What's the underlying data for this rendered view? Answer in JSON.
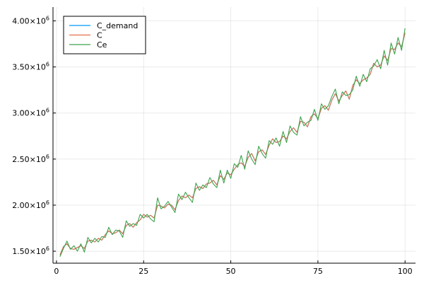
{
  "chart_data": {
    "type": "line",
    "title": "",
    "xlabel": "",
    "ylabel": "",
    "xlim": [
      -1,
      103
    ],
    "ylim": [
      1370000,
      4150000
    ],
    "grid": true,
    "legend_position": "top-left",
    "x_ticks": [
      0,
      25,
      50,
      75,
      100
    ],
    "x_tick_labels": [
      "0",
      "25",
      "50",
      "75",
      "100"
    ],
    "y_ticks": [
      1500000,
      2000000,
      2500000,
      3000000,
      3500000,
      4000000
    ],
    "y_tick_labels": [
      {
        "mantissa": "1.50×10",
        "exponent": "6"
      },
      {
        "mantissa": "2.00×10",
        "exponent": "6"
      },
      {
        "mantissa": "2.50×10",
        "exponent": "6"
      },
      {
        "mantissa": "3.00×10",
        "exponent": "6"
      },
      {
        "mantissa": "3.50×10",
        "exponent": "6"
      },
      {
        "mantissa": "4.00×10",
        "exponent": "6"
      }
    ],
    "x": [
      1,
      2,
      3,
      4,
      5,
      6,
      7,
      8,
      9,
      10,
      11,
      12,
      13,
      14,
      15,
      16,
      17,
      18,
      19,
      20,
      21,
      22,
      23,
      24,
      25,
      26,
      27,
      28,
      29,
      30,
      31,
      32,
      33,
      34,
      35,
      36,
      37,
      38,
      39,
      40,
      41,
      42,
      43,
      44,
      45,
      46,
      47,
      48,
      49,
      50,
      51,
      52,
      53,
      54,
      55,
      56,
      57,
      58,
      59,
      60,
      61,
      62,
      63,
      64,
      65,
      66,
      67,
      68,
      69,
      70,
      71,
      72,
      73,
      74,
      75,
      76,
      77,
      78,
      79,
      80,
      81,
      82,
      83,
      84,
      85,
      86,
      87,
      88,
      89,
      90,
      91,
      92,
      93,
      94,
      95,
      96,
      97,
      98,
      99,
      100
    ],
    "series": [
      {
        "name": "C_demand",
        "color": "#009AFA",
        "values": [
          1460000,
          1550000,
          1580000,
          1530000,
          1520000,
          1540000,
          1560000,
          1530000,
          1610000,
          1620000,
          1600000,
          1640000,
          1620000,
          1680000,
          1720000,
          1690000,
          1700000,
          1730000,
          1690000,
          1780000,
          1800000,
          1760000,
          1810000,
          1840000,
          1900000,
          1870000,
          1890000,
          1860000,
          2000000,
          1990000,
          1970000,
          2010000,
          2000000,
          1950000,
          2050000,
          2100000,
          2080000,
          2110000,
          2080000,
          2180000,
          2200000,
          2180000,
          2230000,
          2240000,
          2270000,
          2220000,
          2320000,
          2280000,
          2350000,
          2330000,
          2390000,
          2440000,
          2460000,
          2420000,
          2520000,
          2560000,
          2480000,
          2580000,
          2600000,
          2550000,
          2650000,
          2720000,
          2680000,
          2690000,
          2750000,
          2720000,
          2800000,
          2840000,
          2790000,
          2910000,
          2900000,
          2850000,
          2960000,
          2990000,
          2940000,
          3050000,
          3080000,
          3030000,
          3140000,
          3210000,
          3130000,
          3190000,
          3240000,
          3150000,
          3300000,
          3360000,
          3320000,
          3360000,
          3380000,
          3420000,
          3540000,
          3500000,
          3520000,
          3620000,
          3570000,
          3700000,
          3690000,
          3760000,
          3720000,
          3870000
        ]
      },
      {
        "name": "C",
        "color": "#E26F46",
        "values": [
          1460000,
          1550000,
          1580000,
          1530000,
          1520000,
          1540000,
          1560000,
          1530000,
          1610000,
          1620000,
          1600000,
          1640000,
          1620000,
          1680000,
          1720000,
          1690000,
          1700000,
          1730000,
          1690000,
          1780000,
          1800000,
          1760000,
          1810000,
          1840000,
          1900000,
          1870000,
          1890000,
          1860000,
          2000000,
          1990000,
          1970000,
          2010000,
          2000000,
          1950000,
          2050000,
          2100000,
          2080000,
          2110000,
          2080000,
          2180000,
          2200000,
          2180000,
          2230000,
          2240000,
          2270000,
          2220000,
          2320000,
          2280000,
          2350000,
          2330000,
          2390000,
          2440000,
          2460000,
          2420000,
          2520000,
          2560000,
          2480000,
          2580000,
          2600000,
          2550000,
          2650000,
          2720000,
          2680000,
          2690000,
          2750000,
          2720000,
          2800000,
          2840000,
          2790000,
          2910000,
          2900000,
          2850000,
          2960000,
          2990000,
          2940000,
          3050000,
          3080000,
          3030000,
          3140000,
          3210000,
          3130000,
          3190000,
          3240000,
          3150000,
          3300000,
          3360000,
          3320000,
          3360000,
          3380000,
          3420000,
          3540000,
          3500000,
          3520000,
          3620000,
          3570000,
          3700000,
          3690000,
          3760000,
          3720000,
          3870000
        ]
      },
      {
        "name": "Ce",
        "color": "#3DA44D",
        "values": [
          1440000,
          1530000,
          1610000,
          1520000,
          1560000,
          1500000,
          1580000,
          1490000,
          1650000,
          1590000,
          1640000,
          1600000,
          1660000,
          1650000,
          1760000,
          1680000,
          1730000,
          1720000,
          1650000,
          1830000,
          1770000,
          1800000,
          1780000,
          1900000,
          1860000,
          1900000,
          1850000,
          1820000,
          2080000,
          1960000,
          1990000,
          2040000,
          1980000,
          1920000,
          2120000,
          2060000,
          2140000,
          2080000,
          2030000,
          2240000,
          2160000,
          2220000,
          2190000,
          2300000,
          2230000,
          2190000,
          2380000,
          2240000,
          2380000,
          2290000,
          2450000,
          2410000,
          2540000,
          2390000,
          2590000,
          2500000,
          2440000,
          2640000,
          2560000,
          2510000,
          2700000,
          2660000,
          2730000,
          2640000,
          2800000,
          2680000,
          2860000,
          2790000,
          2760000,
          2960000,
          2860000,
          2900000,
          2920000,
          3040000,
          2920000,
          3100000,
          3040000,
          3080000,
          3180000,
          3260000,
          3100000,
          3230000,
          3190000,
          3200000,
          3250000,
          3400000,
          3290000,
          3420000,
          3340000,
          3480000,
          3510000,
          3580000,
          3480000,
          3680000,
          3520000,
          3760000,
          3640000,
          3820000,
          3680000,
          3920000
        ]
      }
    ]
  }
}
